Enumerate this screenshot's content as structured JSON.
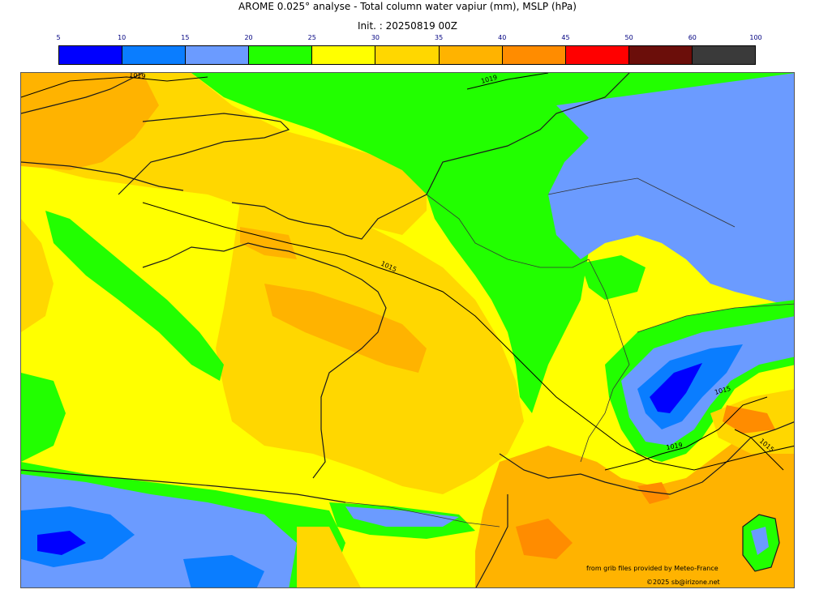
{
  "title": "AROME 0.025° analyse - Total column water vapiur (mm), MSLP (hPa)",
  "subtitle": "Init. : 20250819 00Z",
  "colorbar": {
    "ticks": [
      "5",
      "10",
      "15",
      "20",
      "25",
      "30",
      "35",
      "40",
      "45",
      "50",
      "60",
      "100"
    ],
    "colors": [
      "#0000ff",
      "#0a7dff",
      "#6b9bff",
      "#22ff00",
      "#ffff00",
      "#ffd700",
      "#ffb300",
      "#ff8c00",
      "#ff0000",
      "#6b0e0a",
      "#3a3a3a"
    ]
  },
  "map": {
    "isobar_labels": [
      "1019",
      "1019",
      "1015",
      "1015",
      "1015",
      "1019"
    ]
  },
  "credits": {
    "source": "from grib files provided by Meteo-France",
    "copyright": "©2025 sb@irizone.net"
  }
}
